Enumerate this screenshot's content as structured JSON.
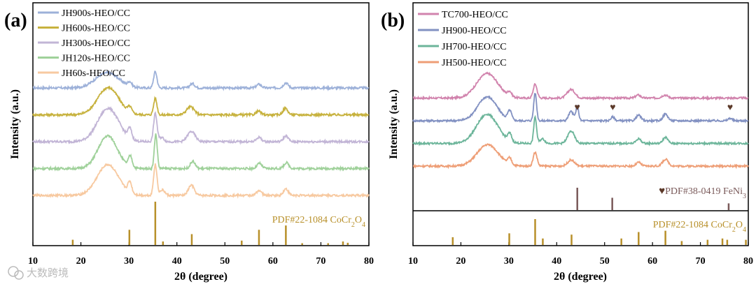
{
  "chart_data": [
    {
      "panel": "(a)",
      "type": "line",
      "xlabel": "2θ (degree)",
      "ylabel": "Intensity (a.u.)",
      "xlim": [
        10,
        80
      ],
      "xticks": [
        10,
        20,
        30,
        40,
        50,
        60,
        70,
        80
      ],
      "series": [
        {
          "name": "JH900s-HEO/CC",
          "color": "#9db1d9",
          "offset": 4,
          "peaks": [
            [
              25.5,
              0.42,
              2.4
            ],
            [
              30.2,
              0.12,
              0.4
            ],
            [
              35.5,
              0.45,
              0.35
            ],
            [
              43.2,
              0.12,
              0.5
            ],
            [
              57.1,
              0.1,
              0.5
            ],
            [
              62.7,
              0.14,
              0.5
            ]
          ]
        },
        {
          "name": "JH600s-HEO/CC",
          "color": "#c7b23e",
          "offset": 3,
          "peaks": [
            [
              25.7,
              0.75,
              2.2
            ],
            [
              30.2,
              0.15,
              0.4
            ],
            [
              35.5,
              0.45,
              0.35
            ],
            [
              42.8,
              0.22,
              0.8
            ],
            [
              57.0,
              0.1,
              0.5
            ],
            [
              62.6,
              0.18,
              0.5
            ]
          ]
        },
        {
          "name": "JH300s-HEO/CC",
          "color": "#c2b5d6",
          "offset": 2,
          "peaks": [
            [
              25.7,
              0.92,
              2.2
            ],
            [
              30.2,
              0.28,
              0.4
            ],
            [
              35.5,
              0.78,
              0.35
            ],
            [
              36.8,
              0.12,
              0.5
            ],
            [
              43.0,
              0.28,
              0.8
            ],
            [
              57.1,
              0.12,
              0.5
            ],
            [
              62.7,
              0.16,
              0.5
            ]
          ]
        },
        {
          "name": "JH120s-HEO/CC",
          "color": "#9fd19a",
          "offset": 1,
          "peaks": [
            [
              25.6,
              0.9,
              2.0
            ],
            [
              30.3,
              0.3,
              0.4
            ],
            [
              35.6,
              0.95,
              0.3
            ],
            [
              43.3,
              0.2,
              0.5
            ],
            [
              57.2,
              0.14,
              0.5
            ],
            [
              62.8,
              0.16,
              0.5
            ]
          ]
        },
        {
          "name": "JH60s-HEO/CC",
          "color": "#f7c9a0",
          "offset": 0,
          "peaks": [
            [
              25.6,
              0.85,
              2.2
            ],
            [
              30.2,
              0.3,
              0.4
            ],
            [
              35.5,
              0.85,
              0.35
            ],
            [
              37.0,
              0.15,
              0.5
            ],
            [
              43.0,
              0.28,
              0.6
            ],
            [
              57.1,
              0.14,
              0.5
            ],
            [
              62.7,
              0.18,
              0.5
            ]
          ]
        }
      ],
      "reference": {
        "label_prefix": "PDF#22-1084  CoCr",
        "sub1": "2",
        "mid": "O",
        "sub2": "4",
        "color": "#b8902a",
        "lines": [
          [
            18.3,
            0.12
          ],
          [
            30.1,
            0.35
          ],
          [
            35.5,
            1.0
          ],
          [
            37.1,
            0.08
          ],
          [
            43.1,
            0.25
          ],
          [
            53.5,
            0.1
          ],
          [
            57.1,
            0.35
          ],
          [
            62.7,
            0.45
          ],
          [
            66.1,
            0.04
          ],
          [
            71.5,
            0.04
          ],
          [
            74.6,
            0.08
          ],
          [
            75.6,
            0.05
          ]
        ]
      }
    },
    {
      "panel": "(b)",
      "type": "line",
      "xlabel": "2θ (degree)",
      "ylabel": "Intensity (a.u.)",
      "xlim": [
        10,
        80
      ],
      "xticks": [
        10,
        20,
        30,
        40,
        50,
        60,
        70,
        80
      ],
      "series": [
        {
          "name": "TC700-HEO/CC",
          "color": "#d183ad",
          "offset": 3,
          "peaks": [
            [
              25.5,
              0.8,
              2.2
            ],
            [
              30.2,
              0.15,
              0.4
            ],
            [
              35.5,
              0.45,
              0.4
            ],
            [
              43.0,
              0.28,
              0.8
            ],
            [
              57.0,
              0.1,
              0.5
            ],
            [
              62.6,
              0.1,
              0.6
            ]
          ]
        },
        {
          "name": "JH900-HEO/CC",
          "color": "#8291c2",
          "offset": 2,
          "peaks": [
            [
              25.5,
              0.78,
              2.0
            ],
            [
              30.2,
              0.3,
              0.4
            ],
            [
              35.5,
              0.9,
              0.3
            ],
            [
              43.0,
              0.3,
              0.5
            ],
            [
              44.3,
              0.45,
              0.3
            ],
            [
              51.7,
              0.12,
              0.4
            ],
            [
              57.1,
              0.18,
              0.5
            ],
            [
              62.7,
              0.22,
              0.5
            ],
            [
              76.2,
              0.08,
              0.4
            ]
          ]
        },
        {
          "name": "JH700-HEO/CC",
          "color": "#6cb59a",
          "offset": 1,
          "peaks": [
            [
              25.5,
              0.95,
              2.2
            ],
            [
              30.2,
              0.25,
              0.4
            ],
            [
              35.5,
              0.85,
              0.3
            ],
            [
              37.0,
              0.15,
              0.5
            ],
            [
              43.0,
              0.4,
              0.7
            ],
            [
              57.1,
              0.15,
              0.5
            ],
            [
              62.7,
              0.2,
              0.5
            ]
          ]
        },
        {
          "name": "JH500-HEO/CC",
          "color": "#ee9e76",
          "offset": 0,
          "peaks": [
            [
              25.6,
              0.7,
              2.2
            ],
            [
              30.2,
              0.2,
              0.4
            ],
            [
              35.5,
              0.45,
              0.4
            ],
            [
              43.0,
              0.2,
              0.7
            ],
            [
              57.1,
              0.12,
              0.5
            ],
            [
              62.7,
              0.22,
              0.6
            ]
          ]
        }
      ],
      "markers": {
        "symbol": "♥",
        "color": "#5c3a2a",
        "positions": [
          44.3,
          51.7,
          76.2
        ]
      },
      "reference_top": {
        "symbol": "♥",
        "label_prefix": "PDF#38-0419  FeNi",
        "sub": "3",
        "color": "#7a5a5a",
        "lines": [
          [
            44.3,
            1.0
          ],
          [
            51.6,
            0.55
          ],
          [
            75.9,
            0.3
          ]
        ]
      },
      "reference": {
        "label_prefix": "PDF#22-1084  CoCr",
        "sub1": "2",
        "mid": "O",
        "sub2": "4",
        "color": "#b8902a",
        "lines": [
          [
            18.3,
            0.3
          ],
          [
            30.1,
            0.45
          ],
          [
            35.5,
            1.0
          ],
          [
            37.1,
            0.25
          ],
          [
            43.1,
            0.4
          ],
          [
            53.5,
            0.25
          ],
          [
            57.1,
            0.5
          ],
          [
            62.7,
            0.55
          ],
          [
            66.1,
            0.15
          ],
          [
            71.5,
            0.2
          ],
          [
            74.6,
            0.25
          ],
          [
            75.6,
            0.2
          ],
          [
            79.5,
            0.2
          ]
        ]
      }
    }
  ],
  "watermark": "大数跨境"
}
